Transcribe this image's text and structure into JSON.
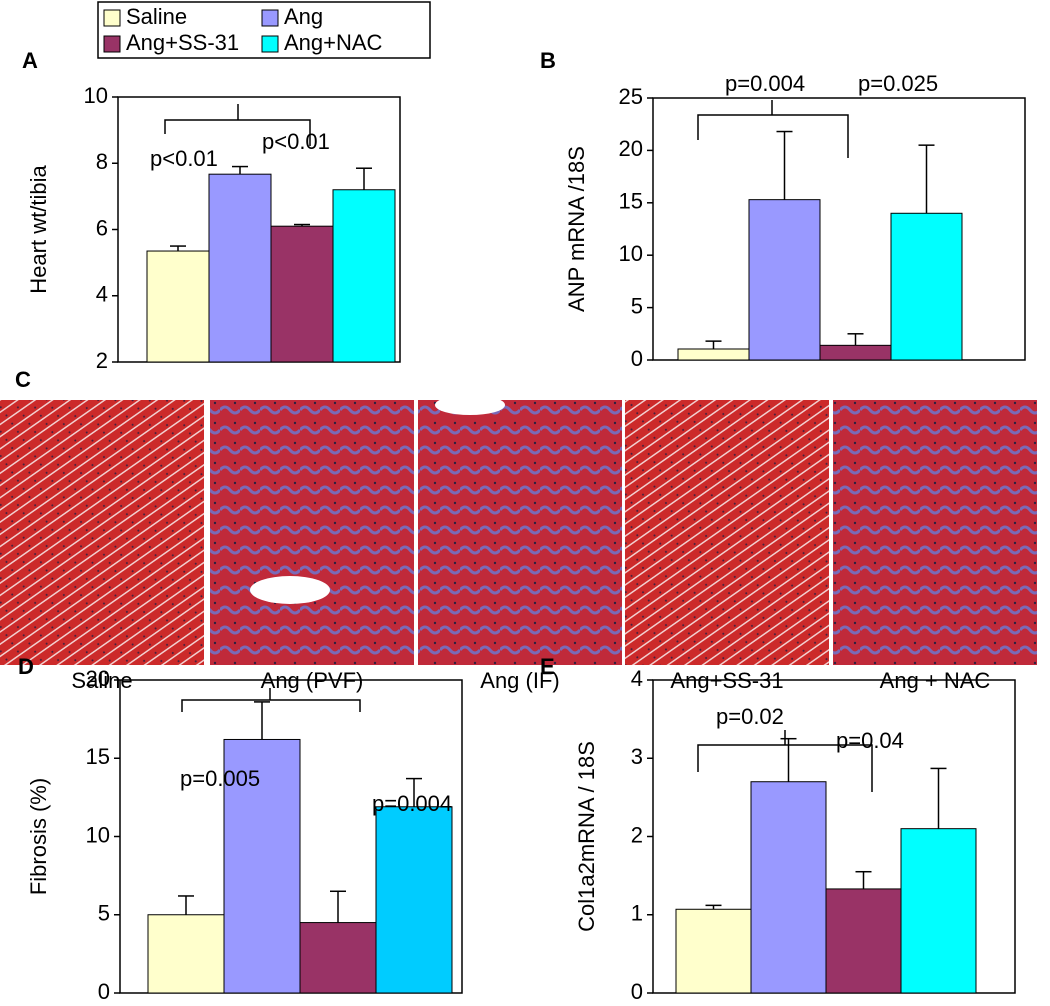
{
  "legend": [
    {
      "name": "Saline",
      "color": "#ffffcc"
    },
    {
      "name": "Ang",
      "color": "#9999ff"
    },
    {
      "name": "Ang+SS-31",
      "color": "#993366"
    },
    {
      "name": "Ang+NAC",
      "color": "#00ffff"
    }
  ],
  "histology": {
    "panel": "C",
    "captions": [
      "Saline",
      "Ang (PVF)",
      "Ang (IF)",
      "Ang+SS-31",
      "Ang + NAC"
    ]
  },
  "chart_data": [
    {
      "type": "bar",
      "panel": "A",
      "y_label": "Heart wt/tibia",
      "values": [
        5.35,
        7.67,
        6.1,
        7.2
      ],
      "errors": [
        0.15,
        0.23,
        0.05,
        0.65
      ],
      "colors": [
        "#ffffcc",
        "#9999ff",
        "#993366",
        "#00ffff"
      ],
      "ylim": [
        2,
        10
      ],
      "yticks": [
        2,
        4,
        6,
        8,
        10
      ],
      "annotations": [
        "p<0.01",
        "p<0.01"
      ]
    },
    {
      "type": "bar",
      "panel": "B",
      "y_label": "ANP mRNA /18S",
      "values": [
        1.05,
        15.3,
        1.4,
        14.0
      ],
      "errors": [
        0.75,
        6.5,
        1.1,
        6.5
      ],
      "colors": [
        "#ffffcc",
        "#9999ff",
        "#993366",
        "#00ffff"
      ],
      "ylim": [
        0,
        25
      ],
      "yticks": [
        0,
        5,
        10,
        15,
        20,
        25
      ],
      "annotations": [
        "p=0.004",
        "p=0.025"
      ]
    },
    {
      "type": "bar",
      "panel": "D",
      "y_label": "Fibrosis (%)",
      "values": [
        5.0,
        16.2,
        4.5,
        11.9
      ],
      "errors": [
        1.2,
        2.4,
        2.0,
        1.8
      ],
      "colors": [
        "#ffffcc",
        "#9999ff",
        "#993366",
        "#00ccff"
      ],
      "ylim": [
        0,
        20
      ],
      "yticks": [
        0,
        5,
        10,
        15,
        20
      ],
      "annotations": [
        "p=0.005",
        "p=0.004"
      ]
    },
    {
      "type": "bar",
      "panel": "E",
      "y_label": "Col1a2mRNA / 18S",
      "values": [
        1.07,
        2.7,
        1.33,
        2.1
      ],
      "errors": [
        0.05,
        0.55,
        0.22,
        0.77
      ],
      "colors": [
        "#ffffcc",
        "#9999ff",
        "#993366",
        "#00ffff"
      ],
      "ylim": [
        0,
        4
      ],
      "yticks": [
        0,
        1,
        2,
        3,
        4
      ],
      "annotations": [
        "p=0.02",
        "p=0.04"
      ]
    }
  ]
}
